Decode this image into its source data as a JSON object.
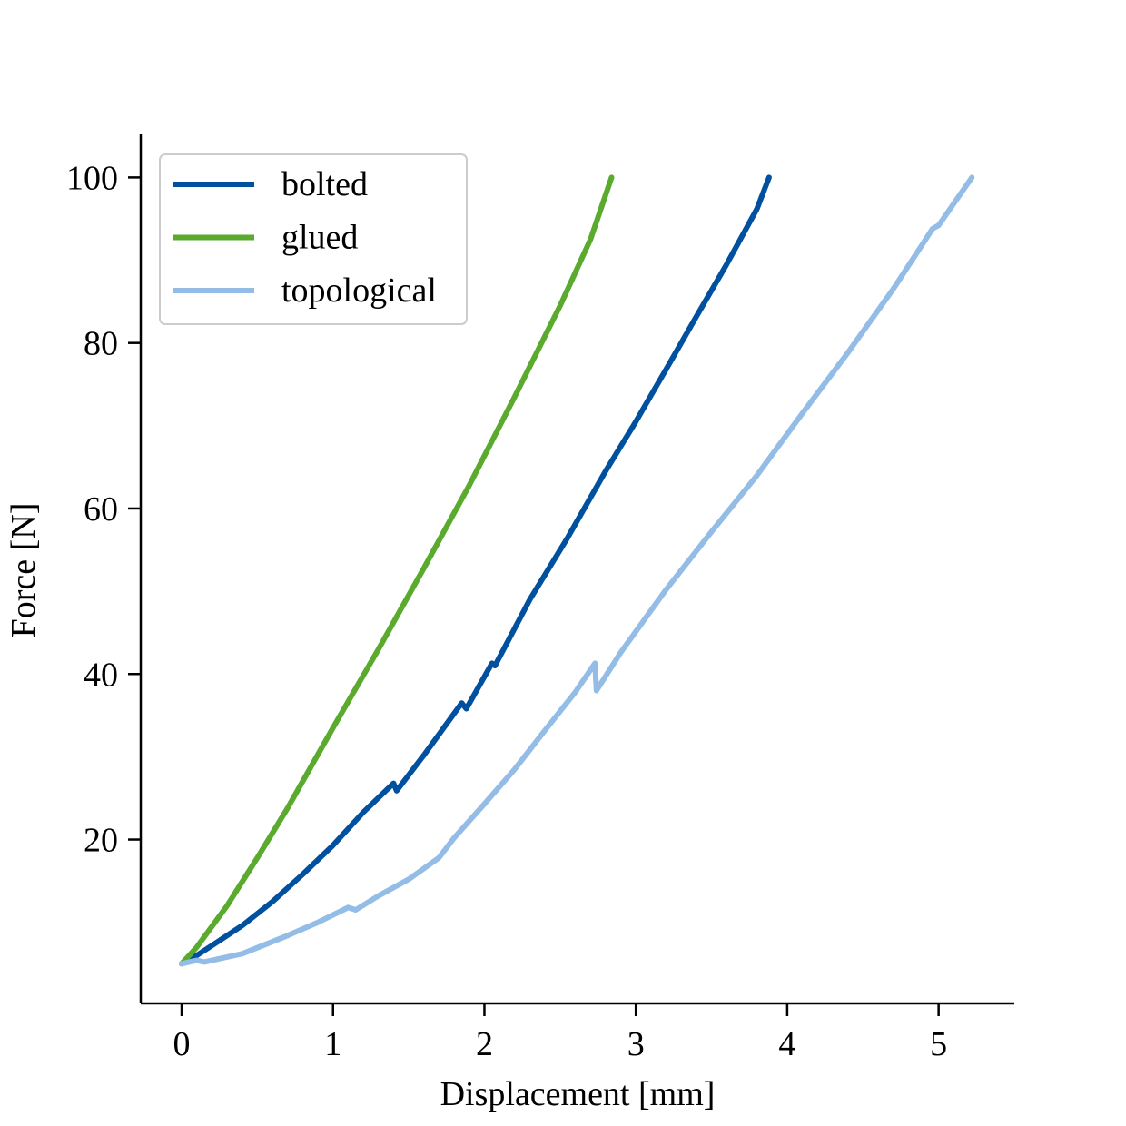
{
  "chart_data": {
    "type": "line",
    "title": "",
    "xlabel": "Displacement [mm]",
    "ylabel": "Force [N]",
    "xlim": [
      -0.27,
      5.5
    ],
    "ylim": [
      0.2,
      105.2
    ],
    "xticks": [
      0,
      1,
      2,
      3,
      4,
      5
    ],
    "xtick_labels": [
      "0",
      "1",
      "2",
      "3",
      "4",
      "5"
    ],
    "yticks": [
      20,
      40,
      60,
      80,
      100
    ],
    "ytick_labels": [
      "20",
      "40",
      "60",
      "80",
      "100"
    ],
    "grid": false,
    "legend_position": "top-left",
    "series": [
      {
        "name": "bolted",
        "color": "#0050a0",
        "points": [
          [
            0.0,
            5.0
          ],
          [
            0.1,
            6.0
          ],
          [
            0.2,
            7.2
          ],
          [
            0.4,
            9.6
          ],
          [
            0.6,
            12.5
          ],
          [
            0.8,
            15.8
          ],
          [
            1.0,
            19.3
          ],
          [
            1.2,
            23.3
          ],
          [
            1.4,
            26.8
          ],
          [
            1.42,
            25.9
          ],
          [
            1.6,
            30.2
          ],
          [
            1.85,
            36.5
          ],
          [
            1.88,
            35.8
          ],
          [
            2.05,
            41.3
          ],
          [
            2.07,
            41.0
          ],
          [
            2.3,
            49.0
          ],
          [
            2.55,
            56.5
          ],
          [
            2.8,
            64.5
          ],
          [
            3.0,
            70.5
          ],
          [
            3.2,
            76.8
          ],
          [
            3.4,
            83.2
          ],
          [
            3.6,
            89.5
          ],
          [
            3.8,
            96.2
          ],
          [
            3.88,
            100.0
          ]
        ]
      },
      {
        "name": "glued",
        "color": "#5aaa2d",
        "points": [
          [
            0.0,
            5.0
          ],
          [
            0.1,
            7.0
          ],
          [
            0.3,
            12.0
          ],
          [
            0.5,
            17.8
          ],
          [
            0.7,
            23.8
          ],
          [
            1.0,
            33.5
          ],
          [
            1.3,
            43.0
          ],
          [
            1.6,
            52.8
          ],
          [
            1.9,
            62.8
          ],
          [
            2.2,
            73.5
          ],
          [
            2.5,
            84.5
          ],
          [
            2.7,
            92.5
          ],
          [
            2.84,
            100.0
          ]
        ]
      },
      {
        "name": "topological",
        "color": "#93bde6",
        "points": [
          [
            0.0,
            5.0
          ],
          [
            0.1,
            5.4
          ],
          [
            0.15,
            5.2
          ],
          [
            0.4,
            6.2
          ],
          [
            0.7,
            8.4
          ],
          [
            0.9,
            10.0
          ],
          [
            1.1,
            11.8
          ],
          [
            1.15,
            11.5
          ],
          [
            1.3,
            13.2
          ],
          [
            1.5,
            15.2
          ],
          [
            1.7,
            17.8
          ],
          [
            1.8,
            20.2
          ],
          [
            2.0,
            24.3
          ],
          [
            2.2,
            28.5
          ],
          [
            2.4,
            33.2
          ],
          [
            2.6,
            37.8
          ],
          [
            2.73,
            41.3
          ],
          [
            2.74,
            38.0
          ],
          [
            2.9,
            42.6
          ],
          [
            3.2,
            50.2
          ],
          [
            3.5,
            57.2
          ],
          [
            3.8,
            64.0
          ],
          [
            4.1,
            71.5
          ],
          [
            4.4,
            78.8
          ],
          [
            4.7,
            86.5
          ],
          [
            4.96,
            93.8
          ],
          [
            5.0,
            94.2
          ],
          [
            5.22,
            100.0
          ]
        ]
      }
    ]
  }
}
